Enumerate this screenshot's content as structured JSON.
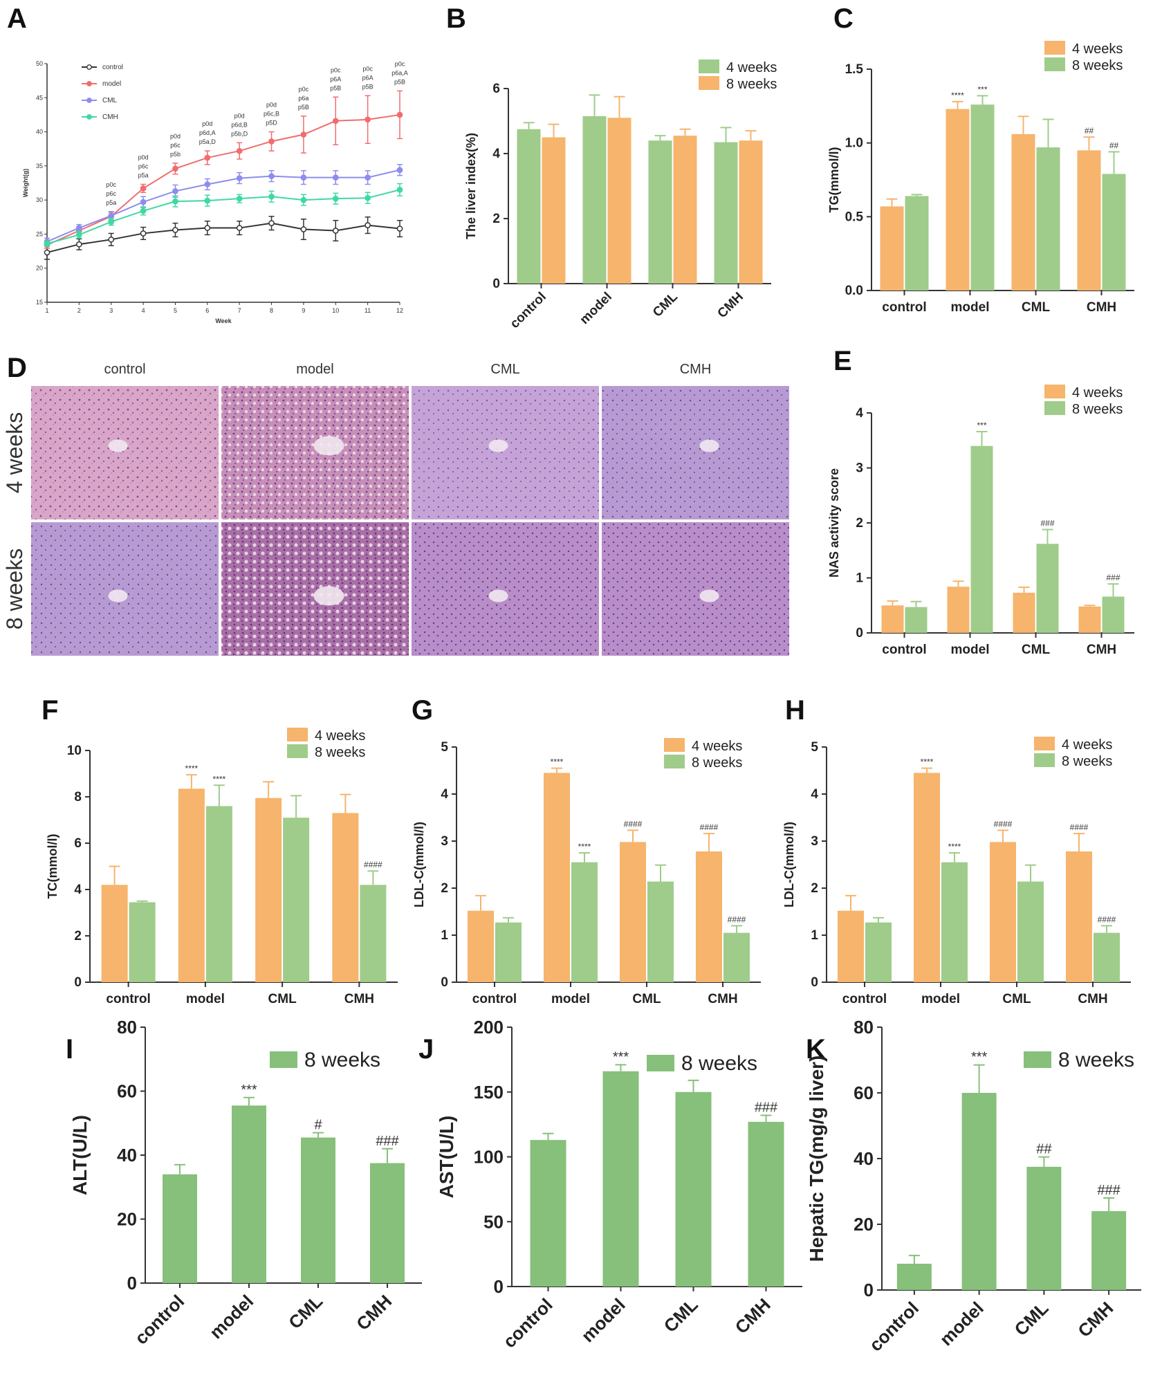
{
  "colors": {
    "orange": "#f6b46c",
    "green": "#9fcc8a",
    "greenDark": "#86c07a",
    "axis": "#333333",
    "control": "#333333",
    "model": "#f06d6d",
    "CML": "#8d8dee",
    "CMH": "#3fd9a2"
  },
  "chart_data": [
    {
      "id": "A",
      "label": "A",
      "type": "line",
      "xlabel": "Week",
      "ylabel": "Weight(g)",
      "x": [
        1,
        2,
        3,
        4,
        5,
        6,
        7,
        8,
        9,
        10,
        11,
        12
      ],
      "ylim": [
        15,
        50
      ],
      "yticks": [
        15,
        20,
        25,
        30,
        35,
        40,
        45,
        50
      ],
      "series": [
        {
          "name": "control",
          "values": [
            22.3,
            23.5,
            24.2,
            25.1,
            25.6,
            25.9,
            25.9,
            26.6,
            25.7,
            25.5,
            26.3,
            25.8
          ],
          "errors": [
            1.0,
            0.8,
            0.9,
            0.9,
            1.0,
            1.0,
            1.0,
            1.0,
            1.5,
            1.5,
            1.2,
            1.2
          ]
        },
        {
          "name": "model",
          "values": [
            23.4,
            25.5,
            27.6,
            31.7,
            34.6,
            36.2,
            37.2,
            38.6,
            39.6,
            41.6,
            41.8,
            42.5
          ],
          "errors": [
            0.5,
            0.5,
            0.6,
            0.6,
            0.8,
            1.0,
            1.2,
            1.4,
            2.7,
            3.5,
            3.5,
            3.5
          ]
        },
        {
          "name": "CML",
          "values": [
            23.9,
            25.9,
            27.7,
            29.7,
            31.3,
            32.3,
            33.2,
            33.5,
            33.3,
            33.3,
            33.3,
            34.4
          ],
          "errors": [
            0.5,
            0.5,
            0.6,
            0.8,
            0.9,
            0.8,
            0.8,
            0.8,
            1.0,
            1.0,
            1.0,
            0.8
          ]
        },
        {
          "name": "CMH",
          "values": [
            23.6,
            24.9,
            26.8,
            28.4,
            29.8,
            29.9,
            30.2,
            30.5,
            30.0,
            30.2,
            30.3,
            31.5
          ],
          "errors": [
            0.4,
            0.5,
            0.5,
            0.6,
            0.8,
            0.8,
            0.6,
            0.8,
            0.8,
            0.8,
            0.8,
            0.9
          ]
        }
      ],
      "annotations": [
        {
          "week": 3,
          "text": [
            "p0c",
            "p6c",
            "p5a"
          ]
        },
        {
          "week": 4,
          "text": [
            "p0d",
            "p6c",
            "p5a"
          ]
        },
        {
          "week": 5,
          "text": [
            "p0d",
            "p6c",
            "p5b"
          ]
        },
        {
          "week": 6,
          "text": [
            "p0d",
            "p6d,A",
            "p5a,D"
          ]
        },
        {
          "week": 7,
          "text": [
            "p0d",
            "p6d,B",
            "p5b,D"
          ]
        },
        {
          "week": 8,
          "text": [
            "p0d",
            "p6c,B",
            "p5D"
          ]
        },
        {
          "week": 9,
          "text": [
            "p0c",
            "p6a",
            "p5B"
          ]
        },
        {
          "week": 10,
          "text": [
            "p0c",
            "p6A",
            "p5B"
          ]
        },
        {
          "week": 11,
          "text": [
            "p0c",
            "p6A",
            "p5B"
          ]
        },
        {
          "week": 12,
          "text": [
            "p0c",
            "p6a,A",
            "p5B"
          ]
        }
      ]
    },
    {
      "id": "B",
      "label": "B",
      "type": "bar",
      "ylabel": "The liver index(%)",
      "categories": [
        "control",
        "model",
        "CML",
        "CMH"
      ],
      "ylim": [
        0,
        6
      ],
      "yticks": [
        0,
        2,
        4,
        6
      ],
      "legend": [
        "4 weeks",
        "8 weeks"
      ],
      "series": [
        {
          "name": "4 weeks",
          "color": "green",
          "values": [
            4.75,
            5.15,
            4.4,
            4.35
          ],
          "errors": [
            0.2,
            0.65,
            0.15,
            0.45
          ],
          "sig": [
            "",
            "",
            "",
            ""
          ]
        },
        {
          "name": "8 weeks",
          "color": "orange",
          "values": [
            4.5,
            5.1,
            4.55,
            4.4
          ],
          "errors": [
            0.4,
            0.65,
            0.2,
            0.3
          ],
          "sig": [
            "",
            "",
            "",
            ""
          ]
        }
      ]
    },
    {
      "id": "C",
      "label": "C",
      "type": "bar",
      "ylabel": "TG(mmol/l)",
      "categories": [
        "control",
        "model",
        "CML",
        "CMH"
      ],
      "ylim": [
        0,
        1.5
      ],
      "yticks": [
        "0.0",
        "0.5",
        "1.0",
        "1.5"
      ],
      "legend": [
        "4 weeks",
        "8 weeks"
      ],
      "series": [
        {
          "name": "4 weeks",
          "color": "orange",
          "values": [
            0.57,
            1.23,
            1.06,
            0.95
          ],
          "errors": [
            0.05,
            0.05,
            0.12,
            0.09
          ],
          "sig": [
            "",
            "****",
            "",
            "##"
          ]
        },
        {
          "name": "8 weeks",
          "color": "green",
          "values": [
            0.64,
            1.26,
            0.97,
            0.79
          ],
          "errors": [
            0.01,
            0.06,
            0.19,
            0.15
          ],
          "sig": [
            "",
            "***",
            "",
            "##"
          ]
        }
      ]
    },
    {
      "id": "E",
      "label": "E",
      "type": "bar",
      "ylabel": "NAS activity score",
      "categories": [
        "control",
        "model",
        "CML",
        "CMH"
      ],
      "ylim": [
        0,
        4
      ],
      "yticks": [
        0,
        1,
        2,
        3,
        4
      ],
      "legend": [
        "4 weeks",
        "8 weeks"
      ],
      "series": [
        {
          "name": "4 weeks",
          "color": "orange",
          "values": [
            0.5,
            0.84,
            0.73,
            0.48
          ],
          "errors": [
            0.08,
            0.1,
            0.1,
            0.02
          ],
          "sig": [
            "",
            "",
            "",
            ""
          ]
        },
        {
          "name": "8 weeks",
          "color": "green",
          "values": [
            0.47,
            3.4,
            1.62,
            0.66
          ],
          "errors": [
            0.1,
            0.26,
            0.26,
            0.23
          ],
          "sig": [
            "",
            "***",
            "###",
            "###"
          ]
        }
      ]
    },
    {
      "id": "F",
      "label": "F",
      "type": "bar",
      "ylabel": "TC(mmol/l)",
      "categories": [
        "control",
        "model",
        "CML",
        "CMH"
      ],
      "ylim": [
        0,
        10
      ],
      "yticks": [
        0,
        2,
        4,
        6,
        8,
        10
      ],
      "legend": [
        "4 weeks",
        "8 weeks"
      ],
      "series": [
        {
          "name": "4 weeks",
          "color": "orange",
          "values": [
            4.2,
            8.35,
            7.95,
            7.3
          ],
          "errors": [
            0.8,
            0.6,
            0.7,
            0.8
          ],
          "sig": [
            "",
            "****",
            "",
            ""
          ]
        },
        {
          "name": "8 weeks",
          "color": "green",
          "values": [
            3.45,
            7.6,
            7.1,
            4.2
          ],
          "errors": [
            0.05,
            0.9,
            0.95,
            0.6
          ],
          "sig": [
            "",
            "****",
            "",
            "####"
          ]
        }
      ]
    },
    {
      "id": "G",
      "label": "G",
      "type": "bar",
      "ylabel": "LDL-C(mmol/l)",
      "categories": [
        "control",
        "model",
        "CML",
        "CMH"
      ],
      "ylim": [
        0,
        5
      ],
      "yticks": [
        0,
        1,
        2,
        3,
        4,
        5
      ],
      "legend": [
        "4 weeks",
        "8 weeks"
      ],
      "series": [
        {
          "name": "4 weeks",
          "color": "orange",
          "values": [
            1.52,
            4.45,
            2.98,
            2.78
          ],
          "errors": [
            0.32,
            0.1,
            0.25,
            0.38
          ],
          "sig": [
            "",
            "****",
            "####",
            "####"
          ]
        },
        {
          "name": "8 weeks",
          "color": "green",
          "values": [
            1.27,
            2.55,
            2.14,
            1.05
          ],
          "errors": [
            0.1,
            0.2,
            0.35,
            0.15
          ],
          "sig": [
            "",
            "****",
            "",
            "####"
          ]
        }
      ]
    },
    {
      "id": "H",
      "label": "H",
      "type": "bar",
      "ylabel": "LDL-C(mmol/l)",
      "categories": [
        "control",
        "model",
        "CML",
        "CMH"
      ],
      "ylim": [
        0,
        5
      ],
      "yticks": [
        0,
        1,
        2,
        3,
        4,
        5
      ],
      "legend": [
        "4 weeks",
        "8 weeks"
      ],
      "series": [
        {
          "name": "4 weeks",
          "color": "orange",
          "values": [
            1.52,
            4.45,
            2.98,
            2.78
          ],
          "errors": [
            0.32,
            0.1,
            0.25,
            0.38
          ],
          "sig": [
            "",
            "****",
            "####",
            "####"
          ]
        },
        {
          "name": "8 weeks",
          "color": "green",
          "values": [
            1.27,
            2.55,
            2.14,
            1.05
          ],
          "errors": [
            0.1,
            0.2,
            0.35,
            0.15
          ],
          "sig": [
            "",
            "****",
            "",
            "####"
          ]
        }
      ]
    },
    {
      "id": "I",
      "label": "I",
      "type": "bar",
      "ylabel": "ALT(U/L)",
      "categories": [
        "control",
        "model",
        "CML",
        "CMH"
      ],
      "ylim": [
        0,
        80
      ],
      "yticks": [
        0,
        20,
        40,
        60,
        80
      ],
      "legend": [
        "8 weeks"
      ],
      "series": [
        {
          "name": "8 weeks",
          "color": "greenDark",
          "values": [
            34,
            55.5,
            45.5,
            37.5
          ],
          "errors": [
            3,
            2.5,
            1.5,
            4.5
          ],
          "sig": [
            "",
            "***",
            "#",
            "###"
          ]
        }
      ]
    },
    {
      "id": "J",
      "label": "J",
      "type": "bar",
      "ylabel": "AST(U/L)",
      "categories": [
        "control",
        "model",
        "CML",
        "CMH"
      ],
      "ylim": [
        0,
        200
      ],
      "yticks": [
        0,
        50,
        100,
        150,
        200
      ],
      "legend": [
        "8 weeks"
      ],
      "series": [
        {
          "name": "8 weeks",
          "color": "greenDark",
          "values": [
            113,
            166,
            150,
            127
          ],
          "errors": [
            5,
            5,
            9,
            5
          ],
          "sig": [
            "",
            "***",
            "",
            "###"
          ]
        }
      ]
    },
    {
      "id": "K",
      "label": "K",
      "type": "bar",
      "ylabel": "Hepatic TG(mg/g liver)",
      "categories": [
        "control",
        "model",
        "CML",
        "CMH"
      ],
      "ylim": [
        0,
        80
      ],
      "yticks": [
        0,
        20,
        40,
        60,
        80
      ],
      "legend": [
        "8 weeks"
      ],
      "series": [
        {
          "name": "8 weeks",
          "color": "greenDark",
          "values": [
            8,
            60,
            37.5,
            24
          ],
          "errors": [
            2.5,
            8.5,
            3,
            4
          ],
          "sig": [
            "",
            "***",
            "##",
            "###"
          ]
        }
      ]
    }
  ],
  "histology": {
    "label": "D",
    "columns": [
      "control",
      "model",
      "CML",
      "CMH"
    ],
    "rows": [
      "4 weeks",
      "8 weeks"
    ]
  }
}
